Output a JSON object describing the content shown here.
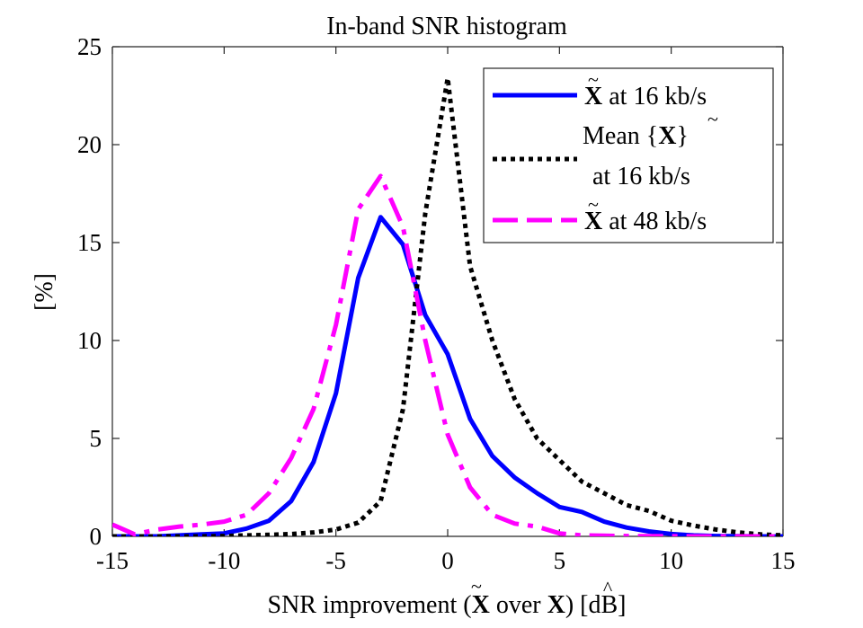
{
  "chart_data": {
    "type": "line",
    "title": "In-band SNR histogram",
    "xlabel": {
      "prefix": "SNR improvement (",
      "sym1": "X",
      "sym1_accent": "~",
      "mid": " over ",
      "sym2": "X",
      "sym2_accent": "^",
      "suffix": ") [dB]"
    },
    "ylabel": "[%]",
    "xlim": [
      -15,
      15
    ],
    "ylim": [
      0,
      25
    ],
    "xticks": [
      -15,
      -10,
      -5,
      0,
      5,
      10,
      15
    ],
    "yticks": [
      0,
      5,
      10,
      15,
      20,
      25
    ],
    "legend_position": "top-right",
    "series": [
      {
        "name": "X at 16 kb/s",
        "legend": {
          "sym": "X",
          "accent": "~",
          "text": " at 16 kb/s"
        },
        "color": "#0000ff",
        "style": "solid",
        "x": [
          -15,
          -14,
          -13,
          -12,
          -11,
          -10,
          -9,
          -8,
          -7,
          -6,
          -5,
          -4,
          -3,
          -2,
          -1,
          0,
          1,
          2,
          3,
          4,
          5,
          6,
          7,
          8,
          9,
          10,
          11,
          12,
          13,
          14,
          15
        ],
        "values": [
          0,
          0,
          0,
          0.05,
          0.1,
          0.15,
          0.4,
          0.8,
          1.8,
          3.8,
          7.3,
          13.2,
          16.3,
          14.9,
          11.3,
          9.3,
          6.0,
          4.1,
          3.0,
          2.2,
          1.5,
          1.25,
          0.75,
          0.45,
          0.25,
          0.12,
          0.05,
          0.02,
          0.01,
          0,
          0
        ]
      },
      {
        "name": "Mean {X} at 16 kb/s",
        "legend": {
          "pre": "Mean {",
          "sym": "X",
          "accent": "~",
          "post": "}",
          "line2": "at 16 kb/s"
        },
        "color": "#000000",
        "style": "dotted",
        "x": [
          -15,
          -14,
          -13,
          -12,
          -11,
          -10,
          -9,
          -8,
          -7,
          -6,
          -5,
          -4,
          -3,
          -2,
          -1,
          0,
          1,
          2,
          3,
          4,
          5,
          6,
          7,
          8,
          9,
          10,
          11,
          12,
          13,
          14,
          15
        ],
        "values": [
          0,
          0,
          0,
          0,
          0,
          0.02,
          0.05,
          0.08,
          0.12,
          0.2,
          0.35,
          0.7,
          1.8,
          6.5,
          16.5,
          23.4,
          13.8,
          10.0,
          7.0,
          5.0,
          3.9,
          2.8,
          2.2,
          1.6,
          1.3,
          0.8,
          0.55,
          0.35,
          0.2,
          0.1,
          0.05
        ]
      },
      {
        "name": "X at 48 kb/s",
        "legend": {
          "sym": "X",
          "accent": "~",
          "text": " at 48 kb/s"
        },
        "color": "#ff00ff",
        "style": "dashdot",
        "x": [
          -15,
          -14,
          -13,
          -12,
          -11,
          -10,
          -9,
          -8,
          -7,
          -6,
          -5,
          -4,
          -3,
          -2,
          -1,
          0,
          1,
          2,
          3,
          4,
          5,
          6,
          7,
          8,
          9,
          10,
          11,
          12,
          13,
          14,
          15
        ],
        "values": [
          0.6,
          0.1,
          0.35,
          0.5,
          0.6,
          0.75,
          1.1,
          2.2,
          4.0,
          6.5,
          10.8,
          16.7,
          18.4,
          15.8,
          10.0,
          5.2,
          2.5,
          1.1,
          0.65,
          0.5,
          0.15,
          0.05,
          0.03,
          0.02,
          0.01,
          0.01,
          0,
          0,
          0,
          0,
          0
        ]
      }
    ]
  }
}
